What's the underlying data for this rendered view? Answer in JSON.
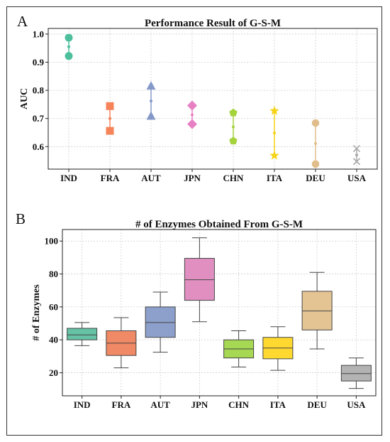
{
  "panels": {
    "a": "A",
    "b": "B"
  },
  "chart_data": [
    {
      "type": "range",
      "title": "Performance Result of G-S-M",
      "xlabel": "",
      "ylabel": "AUC",
      "ylim": [
        0.52,
        1.02
      ],
      "yticks": [
        "0.6",
        "0.7",
        "0.8",
        "0.9",
        "1.0"
      ],
      "grid": true,
      "categories": [
        "IND",
        "FRA",
        "AUT",
        "JPN",
        "CHN",
        "ITA",
        "DEU",
        "USA"
      ],
      "series": [
        {
          "category": "IND",
          "high": 0.987,
          "mid": 0.955,
          "low": 0.922,
          "marker": "circle",
          "color": "#4dbf9c"
        },
        {
          "category": "FRA",
          "high": 0.744,
          "mid": 0.7,
          "low": 0.656,
          "marker": "square",
          "color": "#f5845a"
        },
        {
          "category": "AUT",
          "high": 0.815,
          "mid": 0.762,
          "low": 0.708,
          "marker": "triangle",
          "color": "#8499c8"
        },
        {
          "category": "JPN",
          "high": 0.746,
          "mid": 0.713,
          "low": 0.68,
          "marker": "diamond",
          "color": "#e780c2"
        },
        {
          "category": "CHN",
          "high": 0.72,
          "mid": 0.67,
          "low": 0.62,
          "marker": "pentagon",
          "color": "#a4d33d"
        },
        {
          "category": "ITA",
          "high": 0.727,
          "mid": 0.648,
          "low": 0.568,
          "marker": "star",
          "color": "#f5d317"
        },
        {
          "category": "DEU",
          "high": 0.684,
          "mid": 0.611,
          "low": 0.538,
          "marker": "octagon",
          "color": "#e0bd8a"
        },
        {
          "category": "USA",
          "high": 0.593,
          "mid": 0.57,
          "low": 0.547,
          "marker": "x",
          "color": "#a8a8a8"
        }
      ]
    },
    {
      "type": "box",
      "title": "# of Enzymes Obtained From G-S-M",
      "xlabel": "",
      "ylabel": "# of Enzymes",
      "ylim": [
        6,
        107
      ],
      "yticks": [
        "20",
        "40",
        "60",
        "80",
        "100"
      ],
      "grid": true,
      "categories": [
        "IND",
        "FRA",
        "AUT",
        "JPN",
        "CHN",
        "ITA",
        "DEU",
        "USA"
      ],
      "boxes": [
        {
          "category": "IND",
          "min": 36.5,
          "q1": 40,
          "median": 43,
          "q3": 47,
          "max": 50.5,
          "color": "#66c2a5"
        },
        {
          "category": "FRA",
          "min": 23,
          "q1": 30.5,
          "median": 38,
          "q3": 45.5,
          "max": 53.5,
          "color": "#f08965"
        },
        {
          "category": "AUT",
          "min": 32.5,
          "q1": 41.5,
          "median": 50.5,
          "q3": 60,
          "max": 69,
          "color": "#8da0cb"
        },
        {
          "category": "JPN",
          "min": 51,
          "q1": 64,
          "median": 76.5,
          "q3": 89.5,
          "max": 102,
          "color": "#e08fc0"
        },
        {
          "category": "CHN",
          "min": 23.5,
          "q1": 29,
          "median": 34.5,
          "q3": 40,
          "max": 45.5,
          "color": "#a6d854"
        },
        {
          "category": "ITA",
          "min": 21.5,
          "q1": 28.5,
          "median": 35,
          "q3": 41.5,
          "max": 48,
          "color": "#ffd92f"
        },
        {
          "category": "DEU",
          "min": 34.5,
          "q1": 46,
          "median": 57.5,
          "q3": 69.5,
          "max": 81,
          "color": "#e5c494"
        },
        {
          "category": "USA",
          "min": 10.5,
          "q1": 15,
          "median": 19.5,
          "q3": 24.5,
          "max": 29,
          "color": "#b3b3b3"
        }
      ]
    }
  ]
}
